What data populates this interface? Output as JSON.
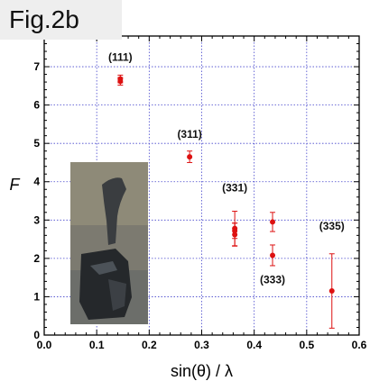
{
  "figure_label": "Fig.2b",
  "chart_data": {
    "type": "scatter",
    "xlabel": "sin(θ) / λ",
    "ylabel": "F",
    "xlim": [
      0.0,
      0.6
    ],
    "ylim": [
      0,
      7.8
    ],
    "x_ticks": [
      "0.0",
      "0.1",
      "0.2",
      "0.3",
      "0.4",
      "0.5",
      "0.6"
    ],
    "y_ticks": [
      "0",
      "1",
      "2",
      "3",
      "4",
      "5",
      "6",
      "7"
    ],
    "grid": true,
    "points": [
      {
        "x": 0.145,
        "y": 6.62,
        "err": 0.1
      },
      {
        "x": 0.145,
        "y": 6.68,
        "err": 0.1
      },
      {
        "x": 0.277,
        "y": 4.65,
        "err": 0.15
      },
      {
        "x": 0.363,
        "y": 2.78,
        "err": 0.45
      },
      {
        "x": 0.363,
        "y": 2.72,
        "err": 0.2
      },
      {
        "x": 0.363,
        "y": 2.62,
        "err": 0.3
      },
      {
        "x": 0.435,
        "y": 2.95,
        "err": 0.25
      },
      {
        "x": 0.435,
        "y": 2.08,
        "err": 0.27
      },
      {
        "x": 0.548,
        "y": 1.15,
        "err": 0.97
      }
    ],
    "annotations": [
      {
        "text": "(111)",
        "x": 0.145,
        "y": 7.15
      },
      {
        "text": "(311)",
        "x": 0.277,
        "y": 5.15
      },
      {
        "text": "(331)",
        "x": 0.363,
        "y": 3.75
      },
      {
        "text": "(335)",
        "x": 0.548,
        "y": 2.75
      },
      {
        "text": "(333)",
        "x": 0.435,
        "y": 1.35
      }
    ],
    "colors": {
      "points": "#dd1111",
      "grid": "#4444cc",
      "axis": "#000000"
    }
  }
}
